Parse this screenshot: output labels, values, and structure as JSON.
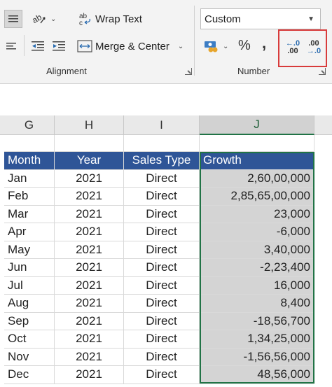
{
  "ribbon": {
    "wrap_text": "Wrap Text",
    "merge_center": "Merge & Center",
    "number_format": "Custom",
    "alignment_label": "Alignment",
    "number_label": "Number",
    "percent_symbol": "%",
    "comma_symbol": ",",
    "increase_decimal_top": "←.0",
    "increase_decimal_bottom": ".00",
    "decrease_decimal_top": ".00",
    "decrease_decimal_bottom": "→.0"
  },
  "columns": [
    "G",
    "H",
    "I",
    "J"
  ],
  "table": {
    "headers": [
      "Month",
      "Year",
      "Sales Type",
      "Growth"
    ],
    "rows": [
      [
        "Jan",
        "2021",
        "Direct",
        "2,60,00,000"
      ],
      [
        "Feb",
        "2021",
        "Direct",
        "2,85,65,00,000"
      ],
      [
        "Mar",
        "2021",
        "Direct",
        "23,000"
      ],
      [
        "Apr",
        "2021",
        "Direct",
        "-6,000"
      ],
      [
        "May",
        "2021",
        "Direct",
        "3,40,000"
      ],
      [
        "Jun",
        "2021",
        "Direct",
        "-2,23,400"
      ],
      [
        "Jul",
        "2021",
        "Direct",
        "16,000"
      ],
      [
        "Aug",
        "2021",
        "Direct",
        "8,400"
      ],
      [
        "Sep",
        "2021",
        "Direct",
        "-18,56,700"
      ],
      [
        "Oct",
        "2021",
        "Direct",
        "1,34,25,000"
      ],
      [
        "Nov",
        "2021",
        "Direct",
        "-1,56,56,000"
      ],
      [
        "Dec",
        "2021",
        "Direct",
        "48,56,000"
      ]
    ]
  },
  "colors": {
    "header_fill": "#2f5597",
    "selection_fill": "#d4d4d4",
    "selection_border": "#217346",
    "highlight_box": "#d83b3b"
  }
}
